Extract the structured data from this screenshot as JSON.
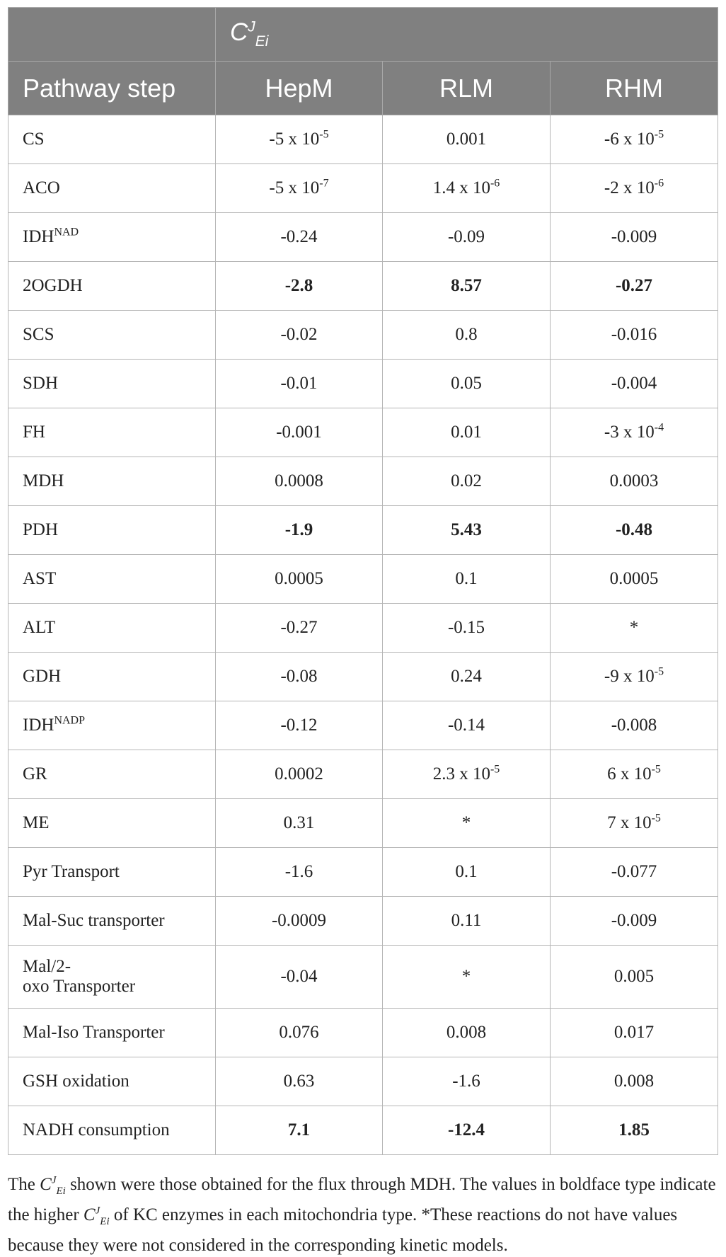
{
  "header": {
    "coefficient": {
      "base": "C",
      "sup": "J",
      "sub": "Ei"
    },
    "columns": [
      "Pathway step",
      "HepM",
      "RLM",
      "RHM"
    ]
  },
  "rows": [
    {
      "step": "CS",
      "step_sup": "",
      "hepm": {
        "base": "-5 x 10",
        "exp": "-5"
      },
      "rlm": {
        "base": "0.001",
        "exp": ""
      },
      "rhm": {
        "base": "-6 x 10",
        "exp": "-5"
      },
      "bold": false
    },
    {
      "step": "ACO",
      "step_sup": "",
      "hepm": {
        "base": "-5 x 10",
        "exp": "-7"
      },
      "rlm": {
        "base": "1.4 x 10",
        "exp": "-6"
      },
      "rhm": {
        "base": "-2 x 10",
        "exp": "-6"
      },
      "bold": false
    },
    {
      "step": "IDH",
      "step_sup": "NAD",
      "hepm": {
        "base": "-0.24",
        "exp": ""
      },
      "rlm": {
        "base": "-0.09",
        "exp": ""
      },
      "rhm": {
        "base": "-0.009",
        "exp": ""
      },
      "bold": false
    },
    {
      "step": "2OGDH",
      "step_sup": "",
      "hepm": {
        "base": "-2.8",
        "exp": ""
      },
      "rlm": {
        "base": "8.57",
        "exp": ""
      },
      "rhm": {
        "base": "-0.27",
        "exp": ""
      },
      "bold": true
    },
    {
      "step": "SCS",
      "step_sup": "",
      "hepm": {
        "base": "-0.02",
        "exp": ""
      },
      "rlm": {
        "base": "0.8",
        "exp": ""
      },
      "rhm": {
        "base": "-0.016",
        "exp": ""
      },
      "bold": false
    },
    {
      "step": "SDH",
      "step_sup": "",
      "hepm": {
        "base": "-0.01",
        "exp": ""
      },
      "rlm": {
        "base": "0.05",
        "exp": ""
      },
      "rhm": {
        "base": "-0.004",
        "exp": ""
      },
      "bold": false
    },
    {
      "step": "FH",
      "step_sup": "",
      "hepm": {
        "base": "-0.001",
        "exp": ""
      },
      "rlm": {
        "base": "0.01",
        "exp": ""
      },
      "rhm": {
        "base": "-3 x 10",
        "exp": "-4"
      },
      "bold": false
    },
    {
      "step": "MDH",
      "step_sup": "",
      "hepm": {
        "base": "0.0008",
        "exp": ""
      },
      "rlm": {
        "base": "0.02",
        "exp": ""
      },
      "rhm": {
        "base": "0.0003",
        "exp": ""
      },
      "bold": false
    },
    {
      "step": "PDH",
      "step_sup": "",
      "hepm": {
        "base": "-1.9",
        "exp": ""
      },
      "rlm": {
        "base": "5.43",
        "exp": ""
      },
      "rhm": {
        "base": "-0.48",
        "exp": ""
      },
      "bold": true
    },
    {
      "step": "AST",
      "step_sup": "",
      "hepm": {
        "base": "0.0005",
        "exp": ""
      },
      "rlm": {
        "base": "0.1",
        "exp": ""
      },
      "rhm": {
        "base": "0.0005",
        "exp": ""
      },
      "bold": false
    },
    {
      "step": "ALT",
      "step_sup": "",
      "hepm": {
        "base": "-0.27",
        "exp": ""
      },
      "rlm": {
        "base": "-0.15",
        "exp": ""
      },
      "rhm": {
        "base": "*",
        "exp": ""
      },
      "bold": false
    },
    {
      "step": "GDH",
      "step_sup": "",
      "hepm": {
        "base": "-0.08",
        "exp": ""
      },
      "rlm": {
        "base": "0.24",
        "exp": ""
      },
      "rhm": {
        "base": "-9 x 10",
        "exp": "-5"
      },
      "bold": false
    },
    {
      "step": "IDH",
      "step_sup": "NADP",
      "hepm": {
        "base": "-0.12",
        "exp": ""
      },
      "rlm": {
        "base": "-0.14",
        "exp": ""
      },
      "rhm": {
        "base": "-0.008",
        "exp": ""
      },
      "bold": false
    },
    {
      "step": "GR",
      "step_sup": "",
      "hepm": {
        "base": "0.0002",
        "exp": ""
      },
      "rlm": {
        "base": "2.3 x 10",
        "exp": "-5"
      },
      "rhm": {
        "base": "6 x 10",
        "exp": "-5"
      },
      "bold": false
    },
    {
      "step": "ME",
      "step_sup": "",
      "hepm": {
        "base": "0.31",
        "exp": ""
      },
      "rlm": {
        "base": "*",
        "exp": ""
      },
      "rhm": {
        "base": "7 x 10",
        "exp": "-5"
      },
      "bold": false
    },
    {
      "step": "Pyr Transport",
      "step_sup": "",
      "hepm": {
        "base": "-1.6",
        "exp": ""
      },
      "rlm": {
        "base": "0.1",
        "exp": ""
      },
      "rhm": {
        "base": "-0.077",
        "exp": ""
      },
      "bold": false
    },
    {
      "step": "Mal-Suc transporter",
      "step_sup": "",
      "hepm": {
        "base": "-0.0009",
        "exp": ""
      },
      "rlm": {
        "base": "0.11",
        "exp": ""
      },
      "rhm": {
        "base": "-0.009",
        "exp": ""
      },
      "bold": false
    },
    {
      "step": "Mal/2-oxo Transporter",
      "step_line1": "Mal/2-",
      "step_line2": "oxo Transporter",
      "step_sup": "",
      "hepm": {
        "base": "-0.04",
        "exp": ""
      },
      "rlm": {
        "base": "*",
        "exp": ""
      },
      "rhm": {
        "base": "0.005",
        "exp": ""
      },
      "bold": false
    },
    {
      "step": "Mal-Iso Transporter",
      "step_sup": "",
      "hepm": {
        "base": "0.076",
        "exp": ""
      },
      "rlm": {
        "base": "0.008",
        "exp": ""
      },
      "rhm": {
        "base": "0.017",
        "exp": ""
      },
      "bold": false
    },
    {
      "step": "GSH oxidation",
      "step_sup": "",
      "hepm": {
        "base": "0.63",
        "exp": ""
      },
      "rlm": {
        "base": "-1.6",
        "exp": ""
      },
      "rhm": {
        "base": "0.008",
        "exp": ""
      },
      "bold": false
    },
    {
      "step": "NADH consumption",
      "step_sup": "",
      "hepm": {
        "base": "7.1",
        "exp": ""
      },
      "rlm": {
        "base": "-12.4",
        "exp": ""
      },
      "rhm": {
        "base": "1.85",
        "exp": ""
      },
      "bold": true
    }
  ],
  "footnote": {
    "part1": "The ",
    "part2": " shown were those obtained for the flux through MDH. The values in boldface type indicate the higher ",
    "part3": " of KC enzymes in each mitochondria type. *These reactions do not have values because they were not considered in the corresponding kinetic models."
  }
}
